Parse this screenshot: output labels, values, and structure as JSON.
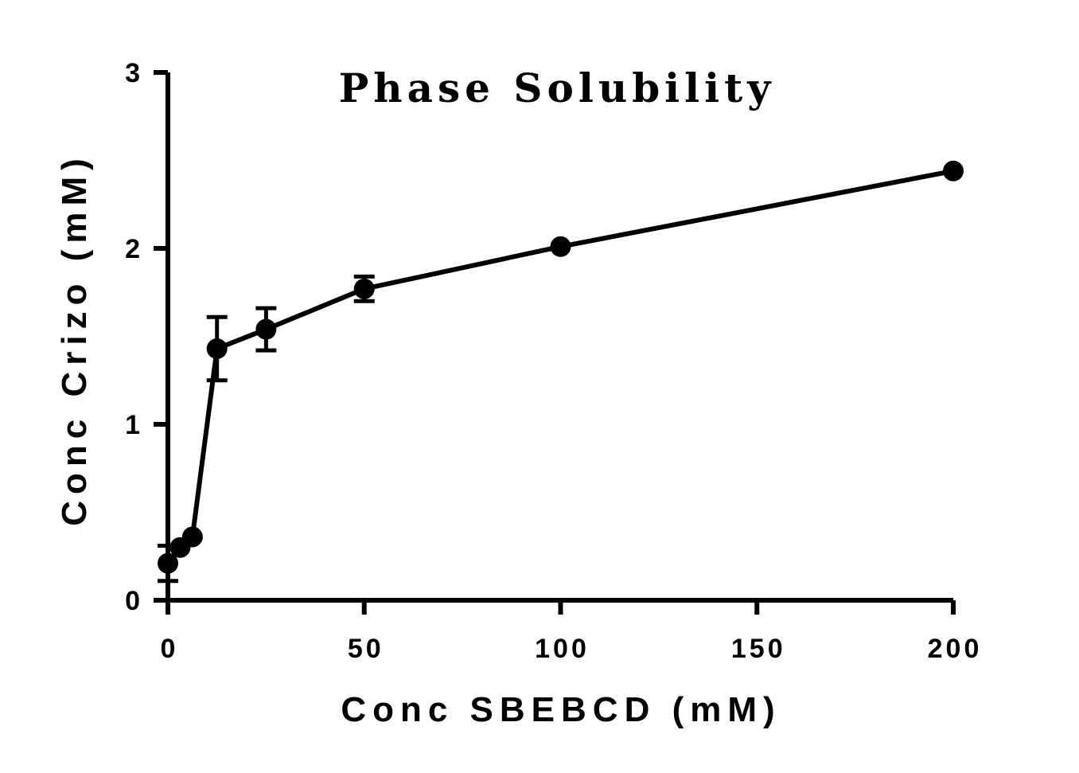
{
  "chart_data": {
    "type": "line",
    "title": "Phase Solubility",
    "xlabel": "Conc SBEBCD (mM)",
    "ylabel": "Conc Crizo (mM)",
    "xlim": [
      0,
      200
    ],
    "ylim": [
      0,
      3
    ],
    "x_ticks": [
      "0",
      "50",
      "100",
      "150",
      "200"
    ],
    "y_ticks": [
      "0",
      "1",
      "2",
      "3"
    ],
    "x_tick_values": [
      0,
      50,
      100,
      150,
      200
    ],
    "y_tick_values": [
      0,
      1,
      2,
      3
    ],
    "grid": false,
    "series": [
      {
        "x": [
          0,
          3.125,
          6.25,
          12.5,
          25,
          50,
          100,
          200
        ],
        "y": [
          0.21,
          0.3,
          0.36,
          1.43,
          1.54,
          1.77,
          2.01,
          2.44
        ],
        "error": [
          0.1,
          0.02,
          0.02,
          0.18,
          0.12,
          0.07,
          0.02,
          0.02
        ]
      }
    ],
    "color": "#000000"
  }
}
